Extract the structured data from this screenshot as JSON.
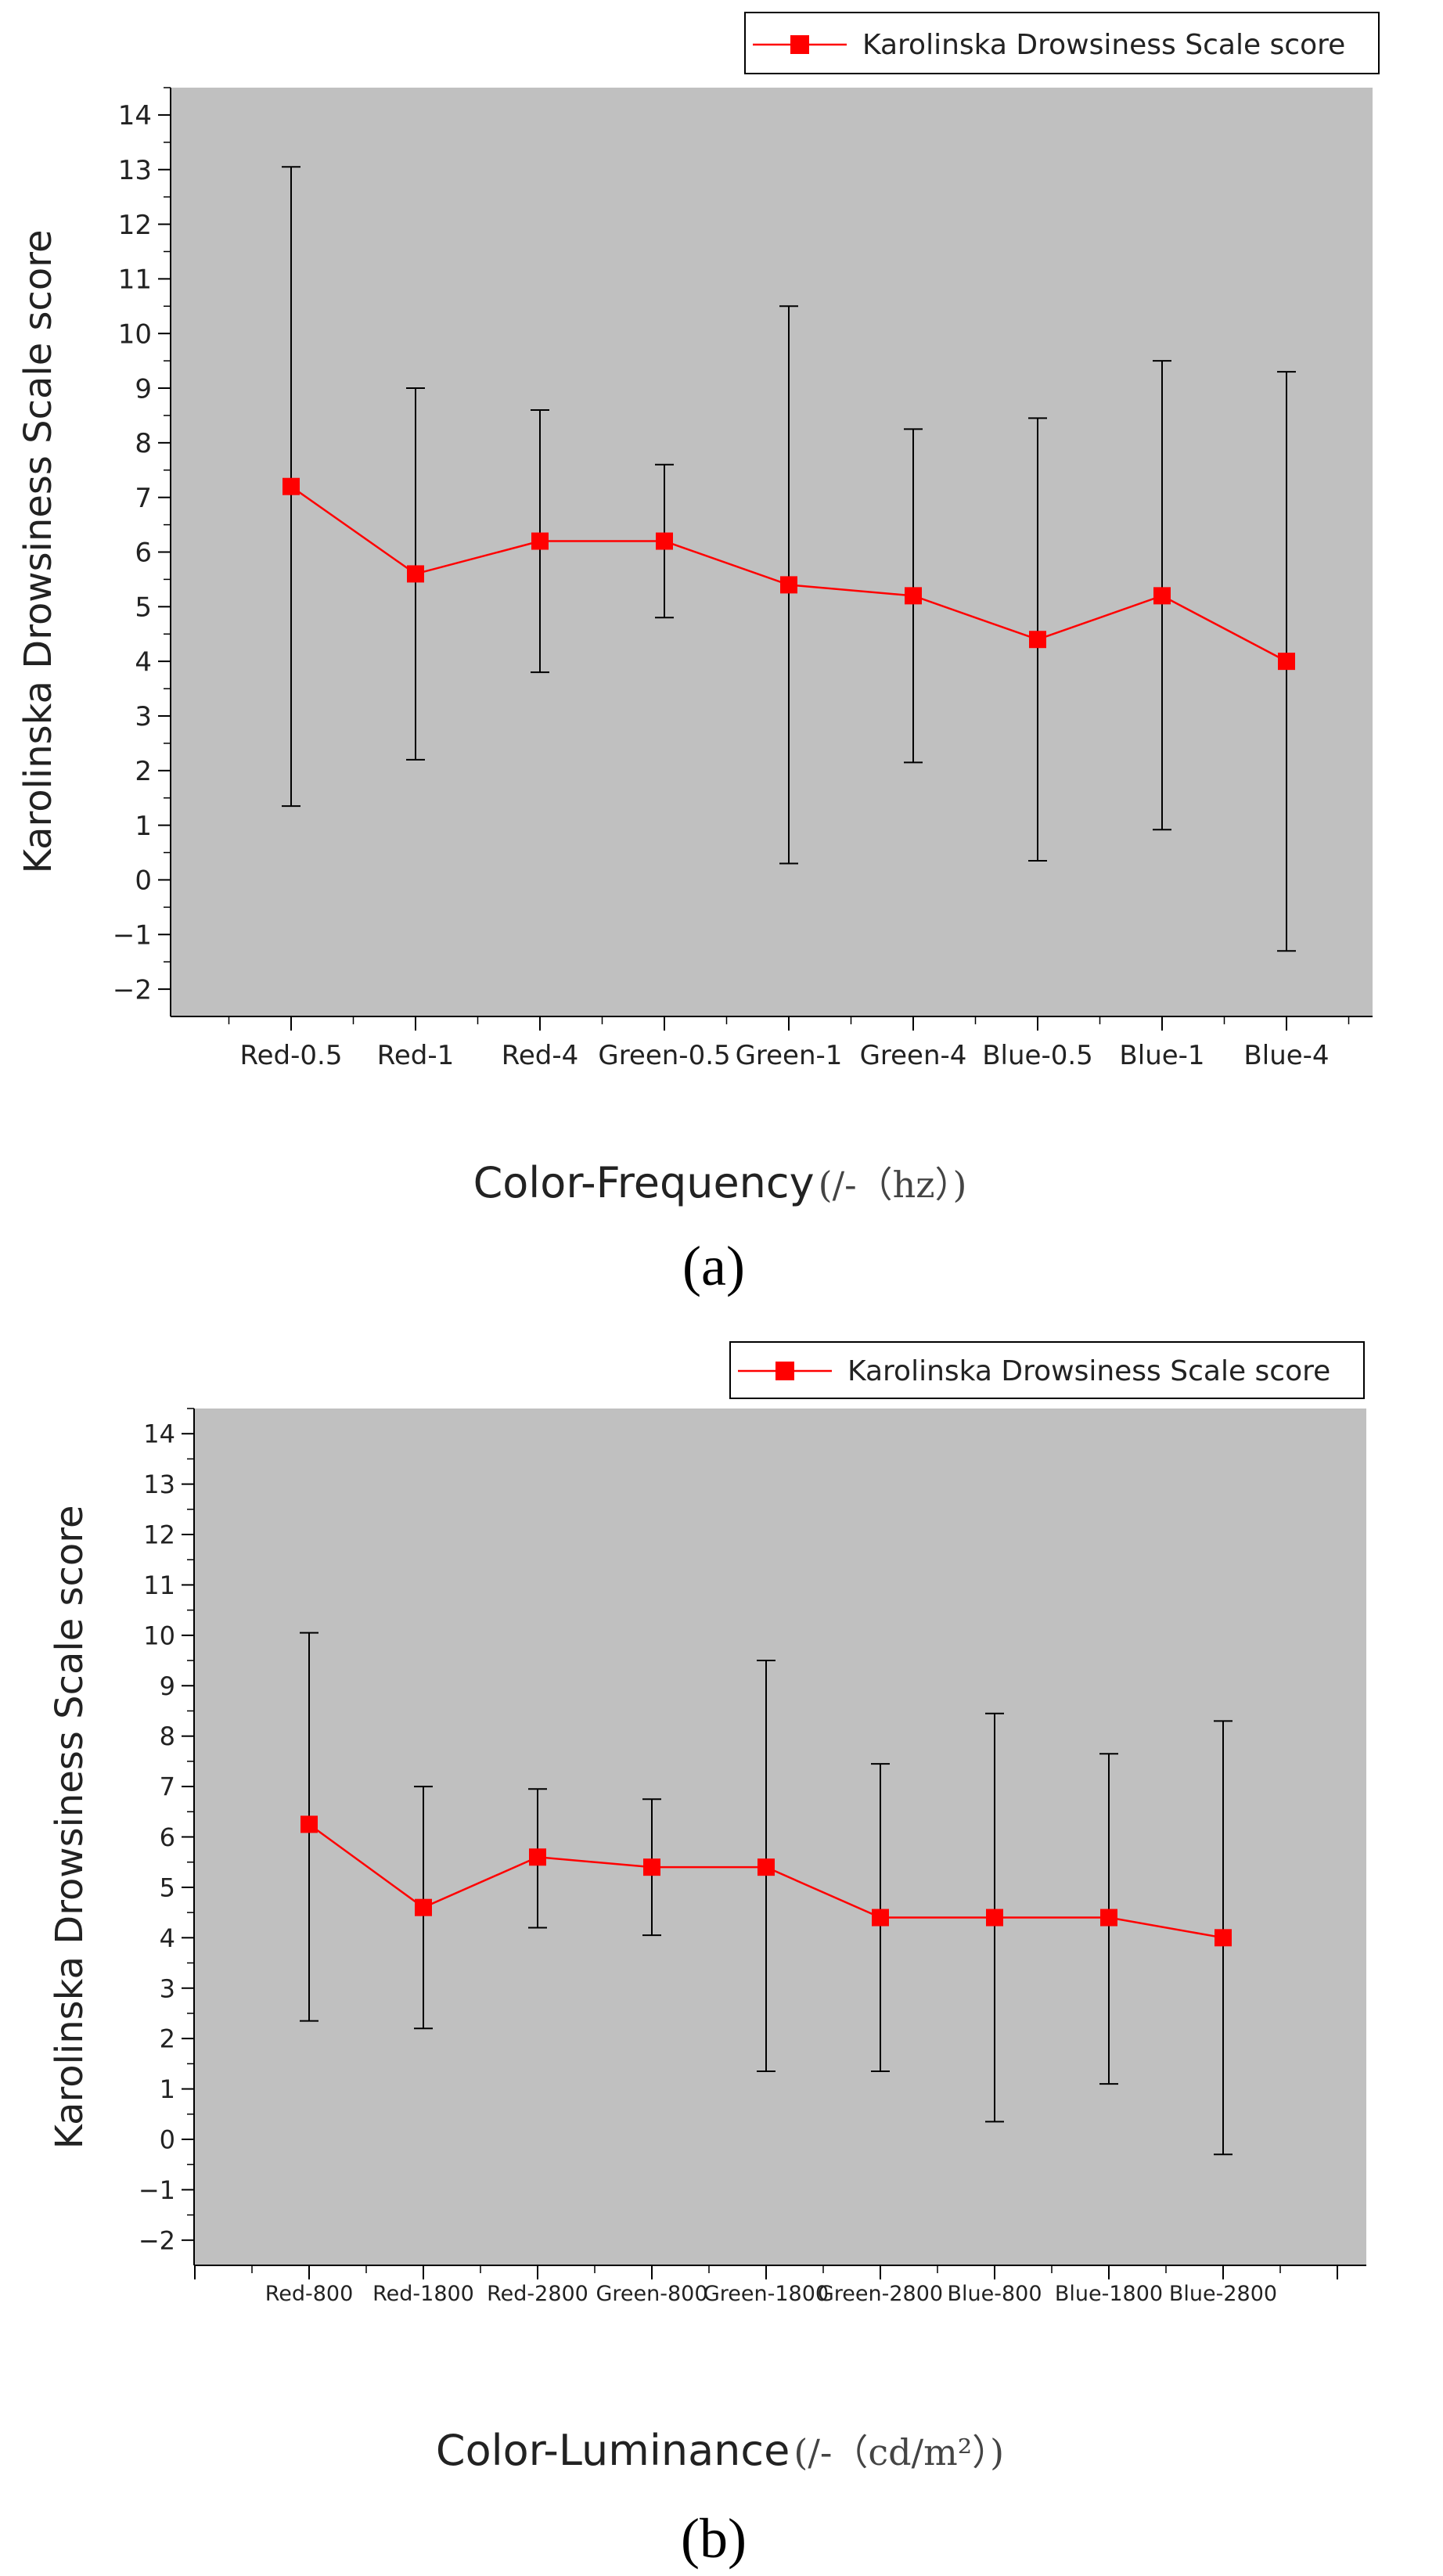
{
  "colors": {
    "plot_bg": "#c0c0c0",
    "series": "#ff0000",
    "error_bar": "#000000",
    "axis": "#000000"
  },
  "chart_data": [
    {
      "panel": "(a)",
      "type": "line",
      "title": "",
      "ylabel": "Karolinska Drowsiness Scale score",
      "xlabel": "Color-Frequency",
      "xlabel_unit": "(/-（hz）)",
      "legend": {
        "label": "Karolinska Drowsiness Scale score",
        "position": "top-right"
      },
      "ylim": [
        -2.5,
        14.5
      ],
      "yticks": [
        -2,
        -1,
        0,
        1,
        2,
        3,
        4,
        5,
        6,
        7,
        8,
        9,
        10,
        11,
        12,
        13,
        14
      ],
      "categories": [
        "Red-0.5",
        "Red-1",
        "Red-4",
        "Green-0.5",
        "Green-1",
        "Green-4",
        "Blue-0.5",
        "Blue-1",
        "Blue-4"
      ],
      "series": [
        {
          "name": "Karolinska Drowsiness Scale score",
          "values": [
            7.2,
            5.6,
            6.2,
            6.2,
            5.4,
            5.2,
            4.4,
            5.2,
            4.0
          ],
          "error_low": [
            1.35,
            2.2,
            3.8,
            4.8,
            0.3,
            2.15,
            0.35,
            0.92,
            -1.3
          ],
          "error_high": [
            13.05,
            9.0,
            8.6,
            7.6,
            10.5,
            8.25,
            8.45,
            9.5,
            9.3
          ]
        }
      ]
    },
    {
      "panel": "(b)",
      "type": "line",
      "title": "",
      "ylabel": "Karolinska Drowsiness Scale score",
      "xlabel": "Color-Luminance",
      "xlabel_unit": "(/-（cd/m²）)",
      "legend": {
        "label": "Karolinska Drowsiness Scale score",
        "position": "top-right"
      },
      "ylim": [
        -2.5,
        14.5
      ],
      "yticks": [
        -2,
        -1,
        0,
        1,
        2,
        3,
        4,
        5,
        6,
        7,
        8,
        9,
        10,
        11,
        12,
        13,
        14
      ],
      "categories": [
        "Red-800",
        "Red-1800",
        "Red-2800",
        "Green-800",
        "Green-1800",
        "Green-2800",
        "Blue-800",
        "Blue-1800",
        "Blue-2800"
      ],
      "series": [
        {
          "name": "Karolinska Drowsiness Scale score",
          "values": [
            6.25,
            4.6,
            5.6,
            5.4,
            5.4,
            4.4,
            4.4,
            4.4,
            4.0
          ],
          "error_low": [
            2.35,
            2.2,
            4.2,
            4.05,
            1.35,
            1.35,
            0.35,
            1.1,
            -0.3
          ],
          "error_high": [
            10.05,
            7.0,
            6.95,
            6.75,
            9.5,
            7.45,
            8.45,
            7.65,
            8.3
          ]
        }
      ]
    }
  ]
}
